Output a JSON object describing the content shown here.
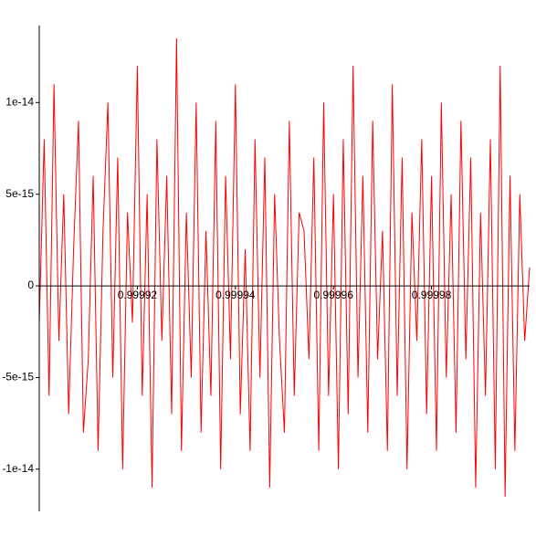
{
  "chart_data": {
    "type": "line",
    "x": [
      0.9999,
      0.999901,
      0.999902,
      0.999903,
      0.999904,
      0.999905,
      0.999906,
      0.999907,
      0.999908,
      0.999909,
      0.99991,
      0.999911,
      0.999912,
      0.999913,
      0.999914,
      0.999915,
      0.999916,
      0.999917,
      0.999918,
      0.999919,
      0.99992,
      0.999921,
      0.999922,
      0.999923,
      0.999924,
      0.999925,
      0.999926,
      0.999927,
      0.999928,
      0.999929,
      0.99993,
      0.999931,
      0.999932,
      0.999933,
      0.999934,
      0.999935,
      0.999936,
      0.999937,
      0.999938,
      0.999939,
      0.99994,
      0.999941,
      0.999942,
      0.999943,
      0.999944,
      0.999945,
      0.999946,
      0.999947,
      0.999948,
      0.999949,
      0.99995,
      0.999951,
      0.999952,
      0.999953,
      0.999954,
      0.999955,
      0.999956,
      0.999957,
      0.999958,
      0.999959,
      0.99996,
      0.999961,
      0.999962,
      0.999963,
      0.999964,
      0.999965,
      0.999966,
      0.999967,
      0.999968,
      0.999969,
      0.99997,
      0.999971,
      0.999972,
      0.999973,
      0.999974,
      0.999975,
      0.999976,
      0.999977,
      0.999978,
      0.999979,
      0.99998,
      0.999981,
      0.999982,
      0.999983,
      0.999984,
      0.999985,
      0.999986,
      0.999987,
      0.999988,
      0.999989,
      0.99999,
      0.999991,
      0.999992,
      0.999993,
      0.999994,
      0.999995,
      0.999996,
      0.999997,
      0.999998,
      0.999999,
      1.0
    ],
    "series": [
      {
        "color": "#ff0000",
        "values": [
          -2e-15,
          8e-15,
          -6e-15,
          1.1e-14,
          -3e-15,
          5e-15,
          -7e-15,
          2e-15,
          9e-15,
          -8e-15,
          -4e-15,
          6e-15,
          -9e-15,
          3e-15,
          1e-14,
          -5e-15,
          7e-15,
          -1e-14,
          4e-15,
          -2e-15,
          1.2e-14,
          -6e-15,
          5e-15,
          -1.1e-14,
          8e-15,
          -3e-15,
          6e-15,
          -7e-15,
          1.35e-14,
          -9e-15,
          4e-15,
          -5e-15,
          1e-14,
          -8e-15,
          3e-15,
          -6e-15,
          9e-15,
          -1e-14,
          6e-15,
          -4e-15,
          1.1e-14,
          -7e-15,
          2e-15,
          -9e-15,
          8e-15,
          -5e-15,
          7e-15,
          -1.1e-14,
          5e-15,
          -3e-15,
          -8e-15,
          9e-15,
          -6e-15,
          4e-15,
          3e-15,
          -4e-15,
          7e-15,
          -9e-15,
          1e-14,
          -6e-15,
          5e-15,
          -1e-14,
          8e-15,
          -7e-15,
          1.2e-14,
          -5e-15,
          6e-15,
          -8e-15,
          9e-15,
          -4e-15,
          3e-15,
          -9e-15,
          1.1e-14,
          -6e-15,
          7e-15,
          -1e-14,
          4e-15,
          -3e-15,
          8e-15,
          -7e-15,
          6e-15,
          -9e-15,
          1e-14,
          -5e-15,
          5e-15,
          -8e-15,
          9e-15,
          -4e-15,
          7e-15,
          -1.1e-14,
          4e-15,
          -6e-15,
          8e-15,
          -1e-14,
          1.2e-14,
          -1.15e-14,
          6e-15,
          -9e-15,
          5e-15,
          -3e-15,
          1e-15
        ]
      }
    ],
    "xlim": [
      0.9999,
      1.0
    ],
    "xticks": [
      0.99992,
      0.99994,
      0.99996,
      0.99998
    ],
    "ylim": [
      -1.23e-14,
      1.42e-14
    ],
    "yticks": [
      {
        "value": 1e-14,
        "label": "1e-14"
      },
      {
        "value": 5e-15,
        "label": "5e-15"
      },
      {
        "value": 0,
        "label": "0"
      },
      {
        "value": -5e-15,
        "label": "-5e-15"
      },
      {
        "value": -1e-14,
        "label": "-1e-14"
      }
    ]
  }
}
